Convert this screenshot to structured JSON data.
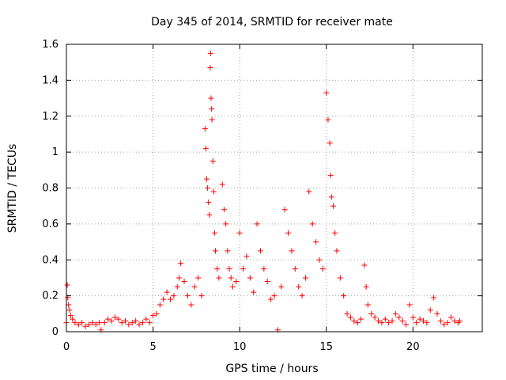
{
  "chart_data": {
    "type": "scatter",
    "title": "Day 345 of 2014, SRMTID for receiver mate",
    "xlabel": "GPS time / hours",
    "ylabel": "SRMTID / TECUs",
    "xlim": [
      0,
      24
    ],
    "ylim": [
      0,
      1.6
    ],
    "xticks": [
      0,
      5,
      10,
      15,
      20
    ],
    "xtick_labels": [
      "0",
      "5",
      "10",
      "15",
      "20"
    ],
    "yticks": [
      0,
      0.2,
      0.4,
      0.6,
      0.8,
      1,
      1.2,
      1.4,
      1.6
    ],
    "ytick_labels": [
      "0",
      "0.2",
      "0.4",
      "0.6",
      "0.8",
      "1",
      "1.2",
      "1.4",
      "1.6"
    ],
    "grid": true,
    "legend": "none",
    "marker": "+",
    "color": "#ff0000",
    "series": [
      {
        "name": "SRMTID",
        "points": [
          [
            0.0,
            0.05
          ],
          [
            0.05,
            0.26
          ],
          [
            0.08,
            0.19
          ],
          [
            0.12,
            0.15
          ],
          [
            0.18,
            0.12
          ],
          [
            0.25,
            0.09
          ],
          [
            0.35,
            0.07
          ],
          [
            0.5,
            0.05
          ],
          [
            0.7,
            0.04
          ],
          [
            0.9,
            0.05
          ],
          [
            1.1,
            0.03
          ],
          [
            1.3,
            0.04
          ],
          [
            1.5,
            0.05
          ],
          [
            1.7,
            0.04
          ],
          [
            1.9,
            0.05
          ],
          [
            2.0,
            0.01
          ],
          [
            2.2,
            0.05
          ],
          [
            2.4,
            0.07
          ],
          [
            2.6,
            0.06
          ],
          [
            2.8,
            0.08
          ],
          [
            3.0,
            0.07
          ],
          [
            3.2,
            0.05
          ],
          [
            3.4,
            0.06
          ],
          [
            3.6,
            0.04
          ],
          [
            3.8,
            0.05
          ],
          [
            4.0,
            0.06
          ],
          [
            4.2,
            0.04
          ],
          [
            4.4,
            0.05
          ],
          [
            4.6,
            0.07
          ],
          [
            4.8,
            0.05
          ],
          [
            5.0,
            0.09
          ],
          [
            5.2,
            0.1
          ],
          [
            5.4,
            0.15
          ],
          [
            5.6,
            0.18
          ],
          [
            5.8,
            0.22
          ],
          [
            6.0,
            0.18
          ],
          [
            6.2,
            0.2
          ],
          [
            6.4,
            0.25
          ],
          [
            6.5,
            0.3
          ],
          [
            6.6,
            0.38
          ],
          [
            6.8,
            0.28
          ],
          [
            7.0,
            0.2
          ],
          [
            7.2,
            0.15
          ],
          [
            7.4,
            0.25
          ],
          [
            7.6,
            0.3
          ],
          [
            7.8,
            0.2
          ],
          [
            8.0,
            1.13
          ],
          [
            8.05,
            1.02
          ],
          [
            8.1,
            0.85
          ],
          [
            8.15,
            0.8
          ],
          [
            8.2,
            0.72
          ],
          [
            8.25,
            0.65
          ],
          [
            8.3,
            1.47
          ],
          [
            8.32,
            1.55
          ],
          [
            8.35,
            1.3
          ],
          [
            8.38,
            1.24
          ],
          [
            8.4,
            1.18
          ],
          [
            8.45,
            0.95
          ],
          [
            8.5,
            0.78
          ],
          [
            8.55,
            0.55
          ],
          [
            8.6,
            0.45
          ],
          [
            8.7,
            0.35
          ],
          [
            8.8,
            0.3
          ],
          [
            9.0,
            0.82
          ],
          [
            9.1,
            0.68
          ],
          [
            9.2,
            0.6
          ],
          [
            9.3,
            0.45
          ],
          [
            9.4,
            0.35
          ],
          [
            9.5,
            0.3
          ],
          [
            9.6,
            0.25
          ],
          [
            9.8,
            0.28
          ],
          [
            10.0,
            0.55
          ],
          [
            10.2,
            0.35
          ],
          [
            10.4,
            0.42
          ],
          [
            10.6,
            0.3
          ],
          [
            10.8,
            0.22
          ],
          [
            11.0,
            0.6
          ],
          [
            11.2,
            0.45
          ],
          [
            11.4,
            0.35
          ],
          [
            11.6,
            0.28
          ],
          [
            11.8,
            0.18
          ],
          [
            12.0,
            0.2
          ],
          [
            12.2,
            0.01
          ],
          [
            12.4,
            0.25
          ],
          [
            12.6,
            0.68
          ],
          [
            12.8,
            0.55
          ],
          [
            13.0,
            0.45
          ],
          [
            13.2,
            0.35
          ],
          [
            13.4,
            0.25
          ],
          [
            13.6,
            0.2
          ],
          [
            13.8,
            0.3
          ],
          [
            14.0,
            0.78
          ],
          [
            14.2,
            0.6
          ],
          [
            14.4,
            0.5
          ],
          [
            14.6,
            0.4
          ],
          [
            14.8,
            0.35
          ],
          [
            15.0,
            1.33
          ],
          [
            15.1,
            1.18
          ],
          [
            15.2,
            1.05
          ],
          [
            15.25,
            0.87
          ],
          [
            15.3,
            0.75
          ],
          [
            15.4,
            0.7
          ],
          [
            15.5,
            0.55
          ],
          [
            15.6,
            0.45
          ],
          [
            15.8,
            0.3
          ],
          [
            16.0,
            0.2
          ],
          [
            16.2,
            0.1
          ],
          [
            16.4,
            0.08
          ],
          [
            16.6,
            0.06
          ],
          [
            16.8,
            0.05
          ],
          [
            17.0,
            0.07
          ],
          [
            17.2,
            0.37
          ],
          [
            17.3,
            0.25
          ],
          [
            17.4,
            0.15
          ],
          [
            17.6,
            0.1
          ],
          [
            17.8,
            0.08
          ],
          [
            18.0,
            0.06
          ],
          [
            18.2,
            0.05
          ],
          [
            18.4,
            0.07
          ],
          [
            18.6,
            0.05
          ],
          [
            18.8,
            0.06
          ],
          [
            19.0,
            0.1
          ],
          [
            19.2,
            0.08
          ],
          [
            19.4,
            0.06
          ],
          [
            19.6,
            0.04
          ],
          [
            19.8,
            0.15
          ],
          [
            20.0,
            0.08
          ],
          [
            20.2,
            0.05
          ],
          [
            20.4,
            0.07
          ],
          [
            20.6,
            0.06
          ],
          [
            20.8,
            0.05
          ],
          [
            21.0,
            0.12
          ],
          [
            21.2,
            0.19
          ],
          [
            21.4,
            0.1
          ],
          [
            21.6,
            0.06
          ],
          [
            21.8,
            0.04
          ],
          [
            22.0,
            0.05
          ],
          [
            22.2,
            0.08
          ],
          [
            22.4,
            0.06
          ],
          [
            22.6,
            0.05
          ],
          [
            22.7,
            0.06
          ]
        ]
      }
    ]
  }
}
